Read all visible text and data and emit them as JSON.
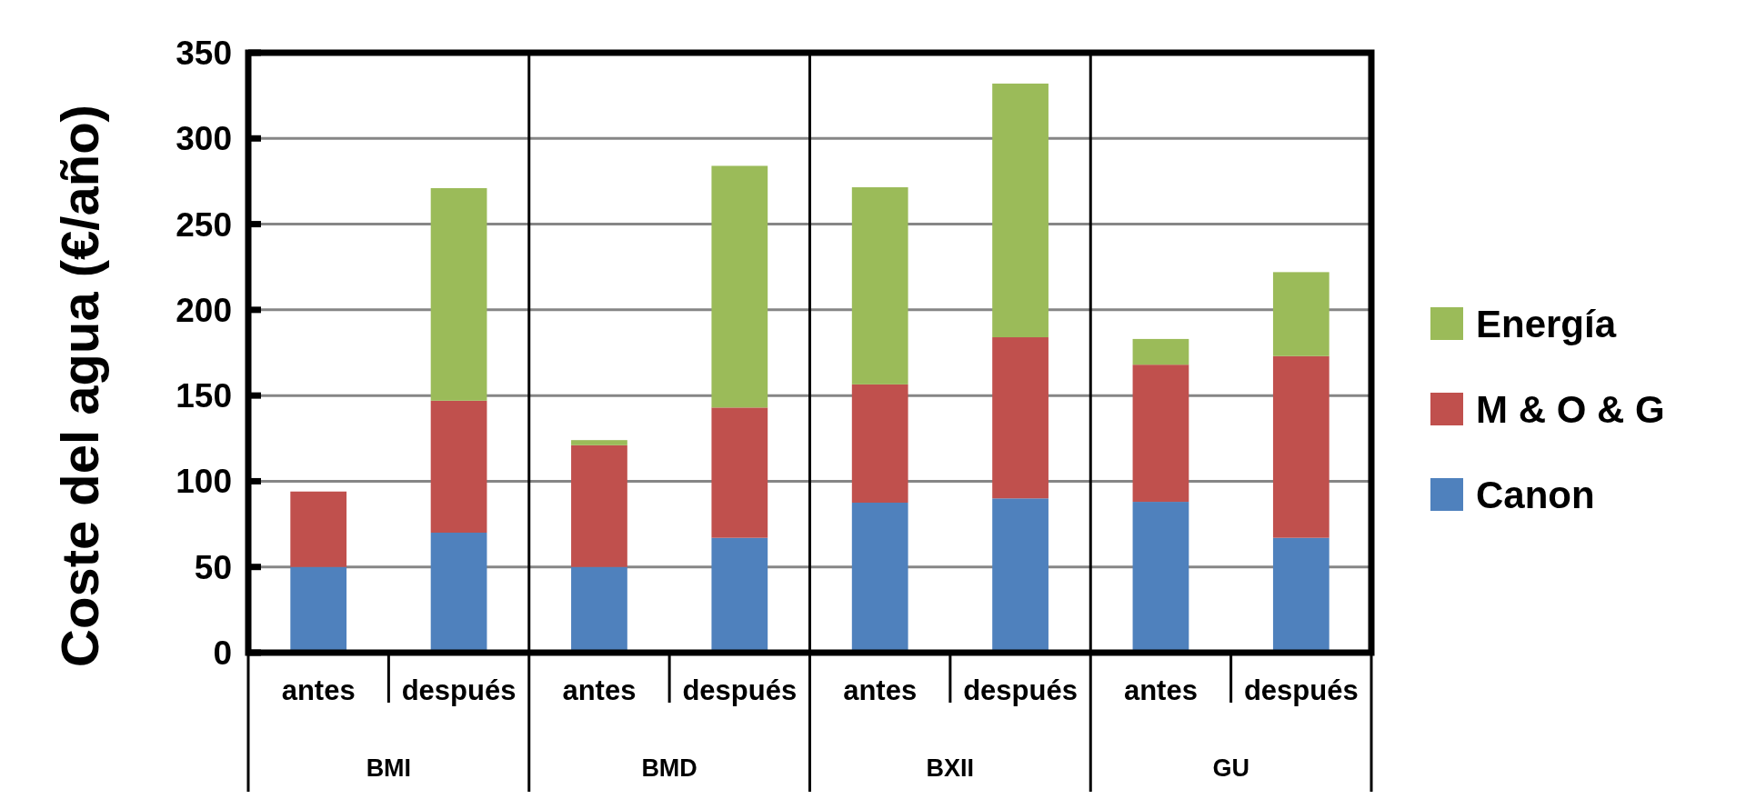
{
  "chart_data": {
    "type": "bar",
    "stacked": true,
    "ylabel": "Coste del agua (€/año)",
    "categories": [
      "antes",
      "después",
      "antes",
      "después",
      "antes",
      "después",
      "antes",
      "después"
    ],
    "annotations": [
      "BMI",
      "BMD",
      "BXII",
      "GU"
    ],
    "series": [
      {
        "name": "Canon",
        "color": "#4f81bd",
        "values": [
          50,
          70,
          50,
          67,
          87.5,
          90,
          88,
          67
        ]
      },
      {
        "name": "M & O & G",
        "color": "#c0504d",
        "values": [
          44,
          77,
          71,
          76,
          69,
          94,
          80,
          106
        ]
      },
      {
        "name": "Energía",
        "color": "#9bbb59",
        "values": [
          null,
          124,
          3,
          141,
          115,
          148,
          15,
          49
        ]
      }
    ],
    "ylim": [
      0,
      350
    ],
    "yticks": [
      0,
      50,
      100,
      150,
      200,
      250,
      300,
      350
    ],
    "grid": "y",
    "legend": "right"
  }
}
